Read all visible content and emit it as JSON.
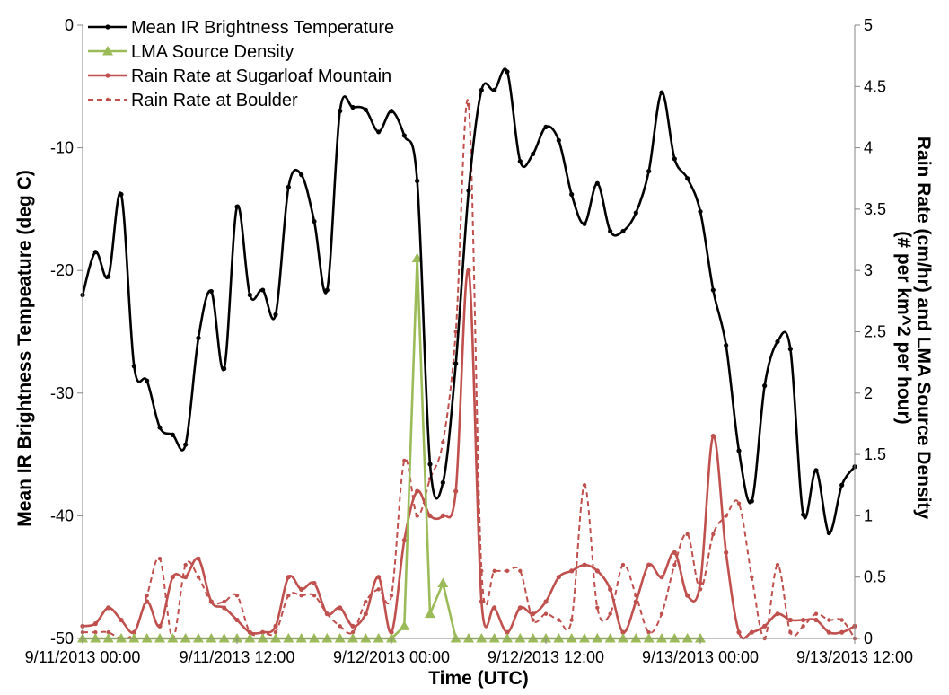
{
  "chart_data": {
    "type": "line",
    "xlabel": "Time (UTC)",
    "ylabel_left": "Mean IR Brightness Tempeature (deg C)",
    "ylabel_right_line1": "Rain Rate (cm/hr)  and LMA Source Density",
    "ylabel_right_line2": "(# per km^2 per hour)",
    "xlim": [
      0,
      60
    ],
    "x_unit": "hours since 9/11/2013 00:00 UTC",
    "x_tick_values": [
      0,
      12,
      24,
      36,
      48,
      60
    ],
    "x_tick_labels": [
      "9/11/2013 00:00",
      "9/11/2013 12:00",
      "9/12/2013 00:00",
      "9/12/2013 12:00",
      "9/13/2013 00:00",
      "9/13/2013 12:00"
    ],
    "ylim_left": [
      -50,
      0
    ],
    "y_left_ticks": [
      0,
      -10,
      -20,
      -30,
      -40,
      -50
    ],
    "ylim_right": [
      0,
      5
    ],
    "y_right_ticks": [
      0,
      0.5,
      1,
      1.5,
      2,
      2.5,
      3,
      3.5,
      4,
      4.5,
      5
    ],
    "legend_position": "top-left",
    "series": [
      {
        "name": "Mean IR Brightness Temperature",
        "axis": "left",
        "color": "#000000",
        "style": "solid-dot",
        "x": [
          0,
          1,
          2,
          3,
          4,
          5,
          6,
          7,
          8,
          9,
          10,
          11,
          12,
          13,
          14,
          15,
          16,
          17,
          18,
          19,
          20,
          21,
          22,
          23,
          24,
          25,
          26,
          27,
          28,
          29,
          30,
          31,
          32,
          33,
          34,
          35,
          36,
          37,
          38,
          39,
          40,
          41,
          42,
          43,
          44,
          45,
          46,
          47,
          48,
          49,
          50,
          51,
          52,
          53,
          54,
          55,
          56,
          57,
          58,
          59,
          60
        ],
        "values": [
          -22,
          -18.5,
          -20.5,
          -13.8,
          -27.8,
          -29,
          -32.8,
          -33.4,
          -34.2,
          -25.5,
          -21.7,
          -28,
          -14.8,
          -22,
          -21.6,
          -23.6,
          -13.2,
          -12.2,
          -16,
          -21.6,
          -7,
          -6.7,
          -6.9,
          -8.7,
          -7,
          -9,
          -12.7,
          -35.8,
          -37.3,
          -27.6,
          -13.5,
          -5.3,
          -5.3,
          -3.8,
          -11.1,
          -10.5,
          -8.3,
          -9.4,
          -13.8,
          -16.2,
          -12.9,
          -16.8,
          -16.8,
          -15.3,
          -11.9,
          -5.5,
          -10.9,
          -12.5,
          -15.2,
          -21.6,
          -26.1,
          -34.7,
          -38.8,
          -29.4,
          -25.8,
          -26.4,
          -39.9,
          -36.3,
          -41.4,
          -37.5,
          -36
        ]
      },
      {
        "name": "LMA Source Density",
        "axis": "right",
        "color": "#9bbb59",
        "style": "solid-triangle",
        "x": [
          0,
          1,
          2,
          3,
          4,
          5,
          6,
          7,
          8,
          9,
          10,
          11,
          12,
          13,
          14,
          15,
          16,
          17,
          18,
          19,
          20,
          21,
          22,
          23,
          24,
          25,
          26,
          27,
          28,
          29,
          30,
          31,
          32,
          33,
          34,
          35,
          36,
          37,
          38,
          39,
          40,
          41,
          42,
          43,
          44,
          45,
          46,
          47,
          48
        ],
        "values": [
          0,
          0,
          0,
          0,
          0,
          0,
          0,
          0,
          0,
          0,
          0,
          0,
          0,
          0,
          0,
          0,
          0,
          0,
          0,
          0,
          0,
          0,
          0,
          0,
          0,
          0.1,
          3.1,
          0.2,
          0.45,
          0,
          0,
          0,
          0,
          0,
          0,
          0,
          0,
          0,
          0,
          0,
          0,
          0,
          0,
          0,
          0,
          0,
          0,
          0,
          0
        ]
      },
      {
        "name": "Rain Rate at Sugarloaf Mountain",
        "axis": "right",
        "color": "#c0504d",
        "style": "solid-dot",
        "x": [
          0,
          1,
          2,
          3,
          4,
          5,
          6,
          7,
          8,
          9,
          10,
          11,
          12,
          13,
          14,
          15,
          16,
          17,
          18,
          19,
          20,
          21,
          22,
          23,
          24,
          25,
          26,
          27,
          28,
          29,
          30,
          31,
          32,
          33,
          34,
          35,
          36,
          37,
          38,
          39,
          40,
          41,
          42,
          43,
          44,
          45,
          46,
          47,
          48,
          49,
          50,
          51,
          52,
          53,
          54,
          55,
          56,
          57,
          58,
          59,
          60
        ],
        "values": [
          0.1,
          0.12,
          0.25,
          0.15,
          0.05,
          0.3,
          0.1,
          0.5,
          0.5,
          0.65,
          0.3,
          0.25,
          0.15,
          0.05,
          0.05,
          0.1,
          0.5,
          0.4,
          0.45,
          0.2,
          0.25,
          0.1,
          0.2,
          0.5,
          0.05,
          0.8,
          1.2,
          1,
          1,
          1.2,
          3,
          0.3,
          0.25,
          0.05,
          0.25,
          0.2,
          0.3,
          0.5,
          0.55,
          0.6,
          0.55,
          0.4,
          0.05,
          0.3,
          0.6,
          0.5,
          0.7,
          0.35,
          0.45,
          1.65,
          0.7,
          0.05,
          0.05,
          0.1,
          0.2,
          0.15,
          0.15,
          0.15,
          0.05,
          0.05,
          0.1
        ]
      },
      {
        "name": "Rain Rate at Boulder",
        "axis": "right",
        "color": "#c0504d",
        "style": "dashed-dot",
        "x": [
          0,
          1,
          2,
          3,
          4,
          5,
          6,
          7,
          8,
          9,
          10,
          11,
          12,
          13,
          14,
          15,
          16,
          17,
          18,
          19,
          20,
          21,
          22,
          23,
          24,
          25,
          26,
          27,
          28,
          29,
          30,
          31,
          32,
          33,
          34,
          35,
          36,
          37,
          38,
          39,
          40,
          41,
          42,
          43,
          44,
          45,
          46,
          47,
          48,
          49,
          50,
          51,
          52,
          53,
          54,
          55,
          56,
          57,
          58,
          59,
          60
        ],
        "values": [
          0.05,
          0.05,
          0.05,
          0,
          0.05,
          0.35,
          0.65,
          0,
          0.6,
          0.5,
          0.3,
          0.3,
          0.35,
          0.05,
          0.05,
          0.05,
          0.35,
          0.35,
          0.35,
          0.2,
          0.1,
          0.05,
          0.3,
          0.4,
          0.35,
          1.45,
          1,
          1.3,
          1.6,
          2.5,
          4.35,
          0.55,
          0.55,
          0.55,
          0.55,
          0.15,
          0.2,
          0.15,
          0.15,
          1.25,
          0.25,
          0.2,
          0.6,
          0.35,
          0.05,
          0.2,
          0.6,
          0.85,
          0.4,
          0.85,
          1,
          1.1,
          0.5,
          0,
          0.6,
          0.05,
          0.1,
          0.2,
          0.15,
          0.15,
          0
        ]
      }
    ]
  }
}
